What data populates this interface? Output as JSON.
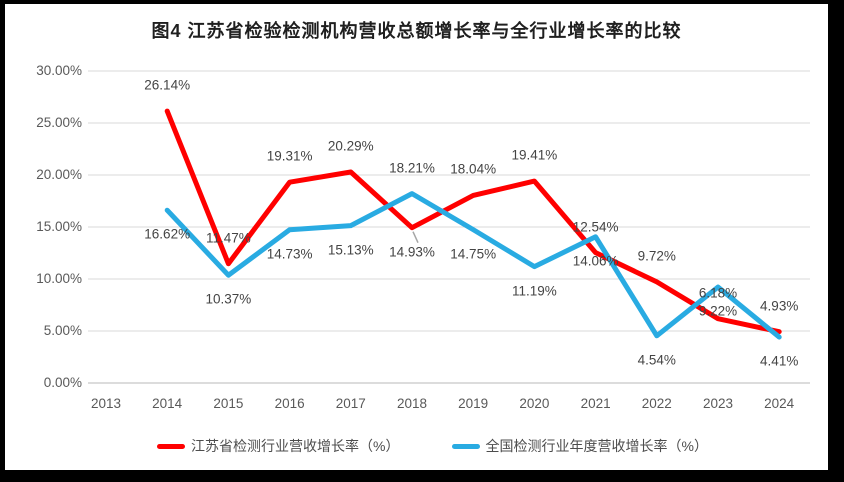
{
  "title": "图4 江苏省检验检测机构营收总额增长率与全行业增长率的比较",
  "chart_data": {
    "type": "line",
    "title": "图4 江苏省检验检测机构营收总额增长率与全行业增长率的比较",
    "categories": [
      "2013",
      "2014",
      "2015",
      "2016",
      "2017",
      "2018",
      "2019",
      "2020",
      "2021",
      "2022",
      "2023",
      "2024"
    ],
    "series": [
      {
        "key": "jiangsu",
        "name": "江苏省检测行业营收增长率（%）",
        "color": "#FF0000",
        "values": [
          null,
          26.14,
          11.47,
          19.31,
          20.29,
          14.93,
          18.04,
          19.41,
          12.54,
          9.72,
          6.18,
          4.93
        ],
        "label_side": "above",
        "label_overrides": [
          {
            "category": "2018",
            "side": "below",
            "leader": true
          }
        ]
      },
      {
        "key": "national",
        "name": "全国检测行业年度营收增长率（%）",
        "color": "#29ABE2",
        "values": [
          null,
          16.62,
          10.37,
          14.73,
          15.13,
          18.21,
          14.75,
          11.19,
          14.06,
          4.54,
          9.22,
          4.41
        ],
        "label_side": "below",
        "label_overrides": [
          {
            "category": "2018",
            "side": "above"
          }
        ]
      }
    ],
    "ylim": [
      0,
      30
    ],
    "ytick_step": 5,
    "ytick_format": "0.00%",
    "grid": true,
    "legend_position": "bottom",
    "gridline_color": "#D9D9D9",
    "zero_line_color": "#C6C6C6",
    "leader_line_color": "#A6A6A6",
    "axis_text_color": "#595959",
    "data_label_color": "#444444"
  }
}
